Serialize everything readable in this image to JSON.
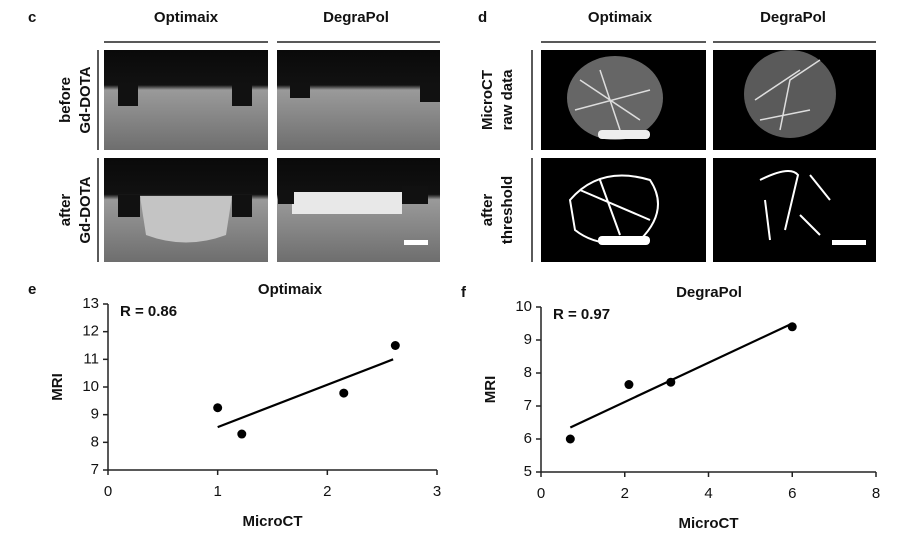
{
  "panel_c": {
    "label": "c",
    "columns": [
      "Optimaix",
      "DegraPol"
    ],
    "rows": [
      [
        "before",
        "Gd-DOTA"
      ],
      [
        "after",
        "Gd-DOTA"
      ]
    ]
  },
  "panel_d": {
    "label": "d",
    "columns": [
      "Optimaix",
      "DegraPol"
    ],
    "rows": [
      [
        "MicroCT",
        "raw data"
      ],
      [
        "after",
        "threshold"
      ]
    ]
  },
  "chart_data": [
    {
      "type": "scatter",
      "panel": "e",
      "title": "Optimaix",
      "annotation": "R = 0.86",
      "xlabel": "MicroCT",
      "ylabel": "MRI",
      "x": [
        1.0,
        1.22,
        2.15,
        2.62
      ],
      "values": [
        9.25,
        8.3,
        9.78,
        11.5
      ],
      "fit": {
        "x": [
          1.0,
          2.6
        ],
        "values": [
          8.55,
          11.0
        ]
      },
      "xlim": [
        0,
        3
      ],
      "ylim": [
        7,
        13
      ],
      "xticks": [
        0,
        1,
        2,
        3
      ],
      "yticks": [
        7,
        8,
        9,
        10,
        11,
        12,
        13
      ],
      "color": "#000000"
    },
    {
      "type": "scatter",
      "panel": "f",
      "title": "DegraPol",
      "annotation": "R = 0.97",
      "xlabel": "MicroCT",
      "ylabel": "MRI",
      "x": [
        0.7,
        2.1,
        3.1,
        6.0
      ],
      "values": [
        6.0,
        7.65,
        7.72,
        9.4
      ],
      "fit": {
        "x": [
          0.7,
          6.0
        ],
        "values": [
          6.35,
          9.5
        ]
      },
      "xlim": [
        0,
        8
      ],
      "ylim": [
        5,
        10
      ],
      "xticks": [
        0,
        2,
        4,
        6,
        8
      ],
      "yticks": [
        5,
        6,
        7,
        8,
        9,
        10
      ],
      "color": "#000000"
    }
  ]
}
